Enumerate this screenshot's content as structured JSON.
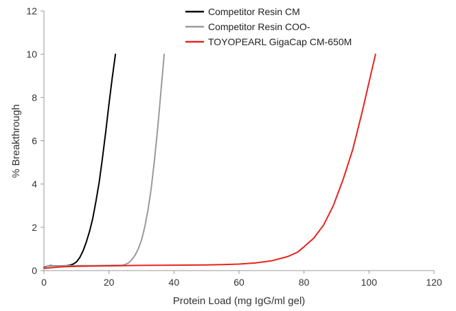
{
  "chart_data": {
    "type": "line",
    "title": "",
    "xlabel": "Protein Load (mg IgG/ml gel)",
    "ylabel": "% Breakthrough",
    "xlim": [
      0,
      120
    ],
    "ylim": [
      0,
      12
    ],
    "x_ticks": [
      "0",
      "20",
      "40",
      "60",
      "80",
      "100",
      "120"
    ],
    "y_ticks": [
      "0",
      "2",
      "4",
      "6",
      "8",
      "10",
      "12"
    ],
    "grid": false,
    "legend_position": "top-right",
    "series": [
      {
        "name": "Competitor Resin CM",
        "color": "#000000",
        "points": [
          [
            0,
            0.15
          ],
          [
            1,
            0.2
          ],
          [
            2,
            0.23
          ],
          [
            3,
            0.22
          ],
          [
            5,
            0.22
          ],
          [
            7,
            0.23
          ],
          [
            8,
            0.25
          ],
          [
            9,
            0.3
          ],
          [
            10,
            0.4
          ],
          [
            11,
            0.6
          ],
          [
            12,
            0.9
          ],
          [
            13,
            1.3
          ],
          [
            14,
            1.8
          ],
          [
            15,
            2.4
          ],
          [
            16,
            3.2
          ],
          [
            17,
            4.1
          ],
          [
            18,
            5.2
          ],
          [
            19,
            6.4
          ],
          [
            20,
            7.7
          ],
          [
            21,
            8.9
          ],
          [
            22,
            10.0
          ]
        ]
      },
      {
        "name": "Competitor Resin COO-",
        "color": "#999999",
        "points": [
          [
            0,
            0.1
          ],
          [
            1,
            0.2
          ],
          [
            2,
            0.25
          ],
          [
            3,
            0.22
          ],
          [
            5,
            0.22
          ],
          [
            10,
            0.23
          ],
          [
            15,
            0.23
          ],
          [
            20,
            0.24
          ],
          [
            24,
            0.25
          ],
          [
            25,
            0.28
          ],
          [
            26,
            0.35
          ],
          [
            27,
            0.5
          ],
          [
            28,
            0.7
          ],
          [
            29,
            1.0
          ],
          [
            30,
            1.4
          ],
          [
            31,
            2.0
          ],
          [
            32,
            2.8
          ],
          [
            33,
            3.8
          ],
          [
            34,
            5.1
          ],
          [
            35,
            6.6
          ],
          [
            36,
            8.3
          ],
          [
            37,
            10.0
          ]
        ]
      },
      {
        "name": "TOYOPEARL GigaCap CM-650M",
        "color": "#e8211d",
        "points": [
          [
            0,
            0.1
          ],
          [
            5,
            0.17
          ],
          [
            10,
            0.2
          ],
          [
            20,
            0.22
          ],
          [
            30,
            0.24
          ],
          [
            40,
            0.25
          ],
          [
            50,
            0.26
          ],
          [
            55,
            0.28
          ],
          [
            60,
            0.3
          ],
          [
            65,
            0.35
          ],
          [
            70,
            0.45
          ],
          [
            75,
            0.65
          ],
          [
            78,
            0.85
          ],
          [
            80,
            1.1
          ],
          [
            83,
            1.5
          ],
          [
            86,
            2.1
          ],
          [
            89,
            3.0
          ],
          [
            92,
            4.2
          ],
          [
            95,
            5.6
          ],
          [
            98,
            7.4
          ],
          [
            100,
            8.7
          ],
          [
            102,
            10.0
          ]
        ]
      }
    ]
  }
}
